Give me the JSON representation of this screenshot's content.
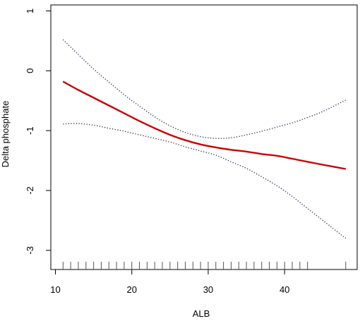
{
  "chart_data": {
    "type": "line",
    "xlabel": "ALB",
    "ylabel": "Delta phosphate",
    "xlim": [
      9.4,
      49.5
    ],
    "ylim": [
      -3.32,
      1.1
    ],
    "x_ticks": [
      "10",
      "20",
      "30",
      "40"
    ],
    "y_ticks": [
      "-3",
      "-2",
      "-1",
      "0",
      "1"
    ],
    "grid": false,
    "series": [
      {
        "role": "fit",
        "style": "solid",
        "color": "#cc0000",
        "x": [
          11,
          13,
          15,
          17,
          19,
          21,
          23,
          25,
          27,
          29,
          31,
          33,
          35,
          37,
          39,
          41,
          43,
          45,
          48
        ],
        "y": [
          -0.18,
          -0.32,
          -0.45,
          -0.58,
          -0.71,
          -0.84,
          -0.96,
          -1.07,
          -1.16,
          -1.23,
          -1.28,
          -1.32,
          -1.35,
          -1.39,
          -1.42,
          -1.47,
          -1.52,
          -1.57,
          -1.64
        ]
      },
      {
        "role": "upper-ci",
        "style": "dotted",
        "color": "#2a2a55",
        "x": [
          11,
          13,
          15,
          17,
          19,
          21,
          23,
          25,
          27,
          29,
          31,
          33,
          35,
          37,
          39,
          41,
          43,
          45,
          48
        ],
        "y": [
          0.52,
          0.27,
          0.03,
          -0.19,
          -0.4,
          -0.59,
          -0.77,
          -0.92,
          -1.03,
          -1.1,
          -1.13,
          -1.12,
          -1.07,
          -1.01,
          -0.94,
          -0.87,
          -0.78,
          -0.68,
          -0.49
        ]
      },
      {
        "role": "lower-ci",
        "style": "dotted",
        "color": "#2a2a55",
        "x": [
          11,
          13,
          15,
          17,
          19,
          21,
          23,
          25,
          27,
          29,
          31,
          33,
          35,
          37,
          39,
          41,
          43,
          45,
          48
        ],
        "y": [
          -0.89,
          -0.88,
          -0.91,
          -0.96,
          -1.01,
          -1.07,
          -1.13,
          -1.19,
          -1.27,
          -1.34,
          -1.41,
          -1.52,
          -1.63,
          -1.77,
          -1.92,
          -2.1,
          -2.3,
          -2.5,
          -2.8
        ]
      }
    ],
    "rug_x": [
      11,
      12,
      13,
      14,
      15,
      16,
      17,
      18,
      19,
      20,
      21,
      22,
      23,
      24,
      25,
      26,
      27,
      28,
      29,
      30,
      31,
      32,
      33,
      34,
      35,
      36,
      37,
      38,
      39,
      40,
      41,
      42,
      43,
      48
    ]
  }
}
